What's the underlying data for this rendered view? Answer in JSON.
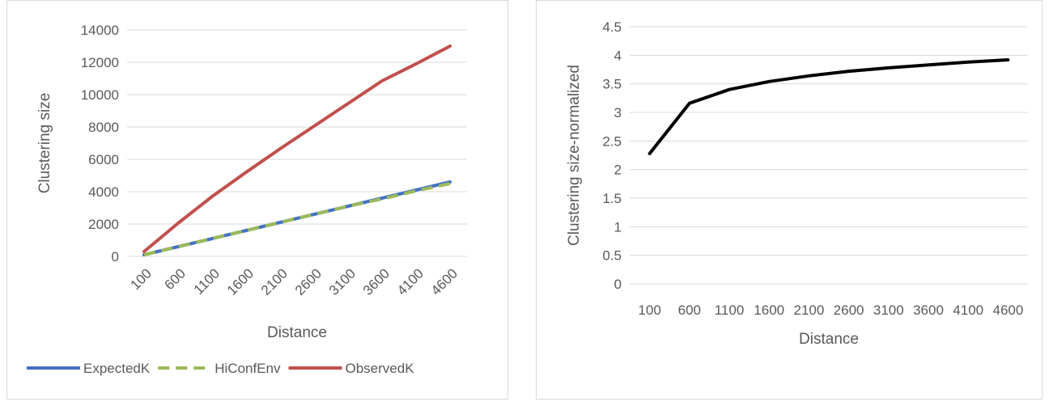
{
  "chart_data": [
    {
      "type": "line",
      "title": "",
      "xlabel": "Distance",
      "ylabel": "Clustering size",
      "categories": [
        "100",
        "600",
        "1100",
        "1600",
        "2100",
        "2600",
        "3100",
        "3600",
        "4100",
        "4600"
      ],
      "ylim": [
        0,
        14000
      ],
      "yticks": [
        0,
        2000,
        4000,
        6000,
        8000,
        10000,
        12000,
        14000
      ],
      "grid": true,
      "legend": "bottom",
      "series": [
        {
          "name": "ExpectedK",
          "color": "#4472c4",
          "dash": "solid",
          "values": [
            100,
            600,
            1100,
            1600,
            2100,
            2600,
            3100,
            3600,
            4100,
            4600
          ]
        },
        {
          "name": "HiConfEnv",
          "color": "#9bbb59",
          "dash": "dashed",
          "values": [
            100,
            600,
            1100,
            1600,
            2100,
            2600,
            3100,
            3550,
            4050,
            4500
          ]
        },
        {
          "name": "ObservedK",
          "color": "#c0504d",
          "dash": "solid",
          "values": [
            300,
            2050,
            3700,
            5200,
            6650,
            8050,
            9450,
            10850,
            11900,
            13000
          ]
        }
      ]
    },
    {
      "type": "line",
      "title": "",
      "xlabel": "Distance",
      "ylabel": "Clustering size-normalized",
      "categories": [
        "100",
        "600",
        "1100",
        "1600",
        "2100",
        "2600",
        "3100",
        "3600",
        "4100",
        "4600"
      ],
      "ylim": [
        0,
        4.5
      ],
      "yticks": [
        "0",
        "0.5",
        "1",
        "1.5",
        "2",
        "2.5",
        "3",
        "3.5",
        "4",
        "4.5"
      ],
      "grid": true,
      "legend": "none",
      "series": [
        {
          "color": "#000000",
          "dash": "solid",
          "values": [
            2.28,
            3.16,
            3.4,
            3.54,
            3.64,
            3.72,
            3.78,
            3.83,
            3.88,
            3.92
          ]
        }
      ]
    }
  ]
}
